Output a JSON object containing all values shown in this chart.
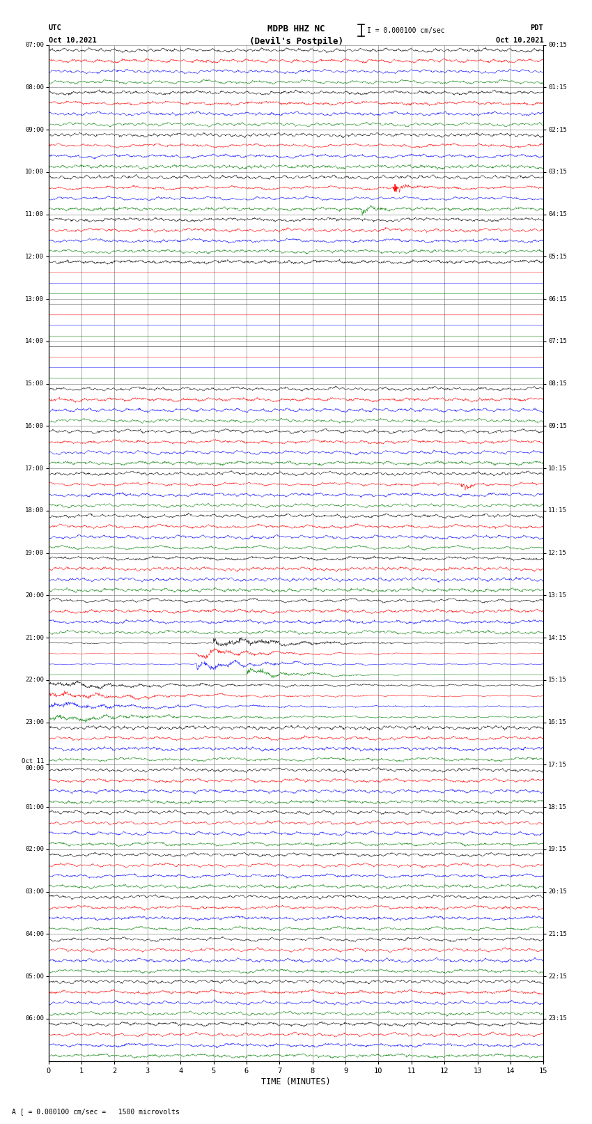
{
  "title_line1": "MDPB HHZ NC",
  "title_line2": "(Devil's Postpile)",
  "scale_text": "I = 0.000100 cm/sec",
  "footer_text": "A [ = 0.000100 cm/sec =   1500 microvolts",
  "xlabel": "TIME (MINUTES)",
  "utc_label": "UTC",
  "utc_date": "Oct 10,2021",
  "pdt_label": "PDT",
  "pdt_date": "Oct 10,2021",
  "utc_hours": [
    "07:00",
    "08:00",
    "09:00",
    "10:00",
    "11:00",
    "12:00",
    "13:00",
    "14:00",
    "15:00",
    "16:00",
    "17:00",
    "18:00",
    "19:00",
    "20:00",
    "21:00",
    "22:00",
    "23:00",
    "Oct 11\n00:00",
    "01:00",
    "02:00",
    "03:00",
    "04:00",
    "05:00",
    "06:00"
  ],
  "pdt_hours": [
    "00:15",
    "01:15",
    "02:15",
    "03:15",
    "04:15",
    "05:15",
    "06:15",
    "07:15",
    "08:15",
    "09:15",
    "10:15",
    "11:15",
    "12:15",
    "13:15",
    "14:15",
    "15:15",
    "16:15",
    "17:15",
    "18:15",
    "19:15",
    "20:15",
    "21:15",
    "22:15",
    "23:15"
  ],
  "num_hours": 24,
  "traces_per_hour": 4,
  "colors": [
    "black",
    "red",
    "blue",
    "green"
  ],
  "bg_color": "white",
  "grid_color": "#888888",
  "xmin": 0,
  "xmax": 15,
  "xticks": [
    0,
    1,
    2,
    3,
    4,
    5,
    6,
    7,
    8,
    9,
    10,
    11,
    12,
    13,
    14,
    15
  ],
  "noise_seed": 12345,
  "base_amplitude": 0.3,
  "quiet_hours": [
    5,
    6,
    7
  ],
  "event_hour_21": 14,
  "event_hour_22": 15,
  "event_hour_10_red": 3,
  "event_hour_17_red": 10
}
